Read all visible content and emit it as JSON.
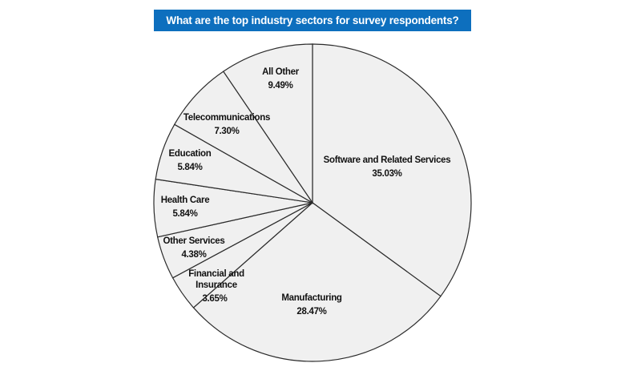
{
  "header": {
    "title": "What are the top industry sectors for survey respondents?"
  },
  "colors": {
    "banner": "#0d6fbe",
    "slice_fill": "#f0f0f0",
    "slice_stroke": "#2b2b2b"
  },
  "chart_data": {
    "type": "pie",
    "title": "What are the top industry sectors for survey respondents?",
    "slices": [
      {
        "label": "Software and Related Services",
        "value": 35.03,
        "display": "35.03%"
      },
      {
        "label": "Manufacturing",
        "value": 28.47,
        "display": "28.47%"
      },
      {
        "label": "Financial and Insurance",
        "value": 3.65,
        "display": "3.65%"
      },
      {
        "label": "Other Services",
        "value": 4.38,
        "display": "4.38%"
      },
      {
        "label": "Health Care",
        "value": 5.84,
        "display": "5.84%"
      },
      {
        "label": "Education",
        "value": 5.84,
        "display": "5.84%"
      },
      {
        "label": "Telecommunications",
        "value": 7.3,
        "display": "7.30%"
      },
      {
        "label": "All Other",
        "value": 9.49,
        "display": "9.49%"
      }
    ],
    "start_angle": "12 o'clock",
    "direction": "clockwise",
    "legend": "none"
  }
}
